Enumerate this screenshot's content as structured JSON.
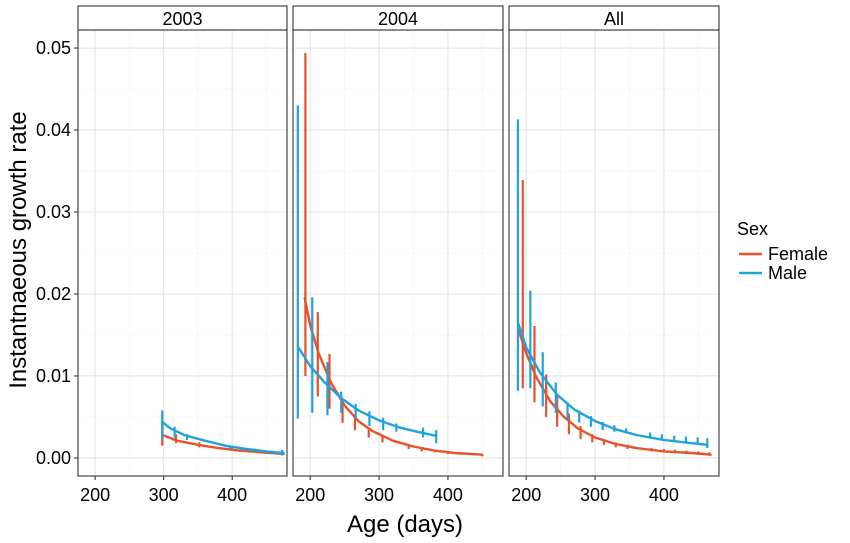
{
  "chart_data": {
    "type": "line",
    "facets": [
      "2003",
      "2004",
      "All"
    ],
    "xlabel": "Age (days)",
    "ylabel": "Instantnaeous growth rate",
    "x_ticks": [
      200,
      300,
      400
    ],
    "y_ticks": [
      "0.00",
      "0.01",
      "0.02",
      "0.03",
      "0.04",
      "0.05"
    ],
    "xlim": [
      175,
      480
    ],
    "ylim": [
      -0.0022,
      0.0522
    ],
    "grid": true,
    "legend": {
      "title": "Sex",
      "position": "right"
    },
    "series": [
      {
        "name": "Female",
        "color": "#E8512A",
        "panels": {
          "2003": {
            "curve": [
              [
                298,
                0.0028
              ],
              [
                320,
                0.0021
              ],
              [
                350,
                0.0016
              ],
              [
                380,
                0.0012
              ],
              [
                410,
                0.0009
              ],
              [
                440,
                0.0007
              ],
              [
                475,
                0.0005
              ]
            ],
            "errorbars": [
              [
                298,
                0.0015,
                0.0045
              ],
              [
                318,
                0.0018,
                0.0029
              ],
              [
                352,
                0.0013,
                0.0019
              ],
              [
                400,
                0.0009,
                0.0012
              ],
              [
                425,
                0.0007,
                0.001
              ],
              [
                450,
                0.0006,
                0.0009
              ],
              [
                472,
                0.0004,
                0.0008
              ]
            ]
          },
          "2004": {
            "curve": [
              [
                192,
                0.0195
              ],
              [
                200,
                0.0162
              ],
              [
                212,
                0.0128
              ],
              [
                230,
                0.0092
              ],
              [
                250,
                0.0064
              ],
              [
                270,
                0.0045
              ],
              [
                290,
                0.0033
              ],
              [
                320,
                0.0021
              ],
              [
                350,
                0.0014
              ],
              [
                380,
                0.0009
              ],
              [
                410,
                0.0006
              ],
              [
                450,
                0.0004
              ]
            ],
            "errorbars": [
              [
                193,
                0.01,
                0.0494
              ],
              [
                211,
                0.0075,
                0.0178
              ],
              [
                228,
                0.006,
                0.0127
              ],
              [
                247,
                0.0043,
                0.0073
              ],
              [
                265,
                0.0034,
                0.0053
              ],
              [
                285,
                0.0025,
                0.0036
              ],
              [
                305,
                0.0019,
                0.0027
              ],
              [
                343,
                0.0011,
                0.0017
              ],
              [
                362,
                0.0008,
                0.0013
              ],
              [
                381,
                0.0007,
                0.001
              ],
              [
                400,
                0.0005,
                0.0008
              ],
              [
                418,
                0.0004,
                0.0007
              ],
              [
                436,
                0.0003,
                0.0006
              ],
              [
                450,
                0.0002,
                0.0005
              ]
            ]
          },
          "All": {
            "curve": [
              [
                188,
                0.0158
              ],
              [
                200,
                0.0128
              ],
              [
                215,
                0.0098
              ],
              [
                235,
                0.0069
              ],
              [
                255,
                0.005
              ],
              [
                275,
                0.0036
              ],
              [
                300,
                0.0025
              ],
              [
                330,
                0.0017
              ],
              [
                360,
                0.0012
              ],
              [
                400,
                0.0008
              ],
              [
                440,
                0.0006
              ],
              [
                468,
                0.0004
              ]
            ],
            "errorbars": [
              [
                195,
                0.0085,
                0.0339
              ],
              [
                212,
                0.0068,
                0.0161
              ],
              [
                229,
                0.005,
                0.0102
              ],
              [
                245,
                0.0038,
                0.0076
              ],
              [
                262,
                0.0029,
                0.0054
              ],
              [
                279,
                0.0023,
                0.0039
              ],
              [
                296,
                0.0019,
                0.0029
              ],
              [
                313,
                0.0016,
                0.0023
              ],
              [
                330,
                0.0013,
                0.0019
              ],
              [
                347,
                0.0011,
                0.0016
              ],
              [
                382,
                0.0008,
                0.0012
              ],
              [
                400,
                0.0007,
                0.0011
              ],
              [
                416,
                0.0006,
                0.001
              ],
              [
                433,
                0.0005,
                0.0009
              ],
              [
                450,
                0.0004,
                0.0008
              ],
              [
                466,
                0.0003,
                0.0007
              ]
            ]
          }
        }
      },
      {
        "name": "Male",
        "color": "#1FA3DD",
        "panels": {
          "2003": {
            "curve": [
              [
                298,
                0.0044
              ],
              [
                310,
                0.0036
              ],
              [
                330,
                0.0028
              ],
              [
                360,
                0.0021
              ],
              [
                390,
                0.0015
              ],
              [
                420,
                0.0011
              ],
              [
                450,
                0.0008
              ],
              [
                475,
                0.0006
              ]
            ],
            "errorbars": [
              [
                298,
                0.0023,
                0.0058
              ],
              [
                316,
                0.0025,
                0.0038
              ],
              [
                334,
                0.0022,
                0.0029
              ],
              [
                397,
                0.0011,
                0.0015
              ],
              [
                415,
                0.0009,
                0.0013
              ],
              [
                432,
                0.0007,
                0.0011
              ],
              [
                452,
                0.0006,
                0.0009
              ],
              [
                473,
                0.0003,
                0.001
              ]
            ]
          },
          "2004": {
            "curve": [
              [
                182,
                0.0136
              ],
              [
                200,
                0.0112
              ],
              [
                220,
                0.0093
              ],
              [
                245,
                0.0073
              ],
              [
                270,
                0.0058
              ],
              [
                300,
                0.0046
              ],
              [
                330,
                0.0037
              ],
              [
                355,
                0.0032
              ],
              [
                383,
                0.0027
              ]
            ],
            "errorbars": [
              [
                182,
                0.0048,
                0.043
              ],
              [
                203,
                0.0055,
                0.0196
              ],
              [
                225,
                0.0052,
                0.0117
              ],
              [
                245,
                0.0055,
                0.0081
              ],
              [
                266,
                0.0048,
                0.0066
              ],
              [
                286,
                0.0039,
                0.0057
              ],
              [
                306,
                0.0034,
                0.0049
              ],
              [
                325,
                0.0032,
                0.0042
              ],
              [
                364,
                0.0025,
                0.0037
              ],
              [
                383,
                0.0018,
                0.0034
              ]
            ]
          },
          "All": {
            "curve": [
              [
                188,
                0.0165
              ],
              [
                200,
                0.0135
              ],
              [
                220,
                0.0104
              ],
              [
                245,
                0.0077
              ],
              [
                270,
                0.0059
              ],
              [
                300,
                0.0045
              ],
              [
                330,
                0.0035
              ],
              [
                360,
                0.0028
              ],
              [
                400,
                0.0022
              ],
              [
                440,
                0.0018
              ],
              [
                463,
                0.0016
              ]
            ],
            "errorbars": [
              [
                188,
                0.0082,
                0.0413
              ],
              [
                206,
                0.0085,
                0.0204
              ],
              [
                224,
                0.0063,
                0.0129
              ],
              [
                243,
                0.0055,
                0.0092
              ],
              [
                260,
                0.0046,
                0.0068
              ],
              [
                277,
                0.0043,
                0.0058
              ],
              [
                294,
                0.0038,
                0.0051
              ],
              [
                311,
                0.0034,
                0.0044
              ],
              [
                328,
                0.0032,
                0.004
              ],
              [
                345,
                0.003,
                0.0036
              ],
              [
                380,
                0.0025,
                0.0031
              ],
              [
                397,
                0.0022,
                0.0029
              ],
              [
                415,
                0.002,
                0.0027
              ],
              [
                432,
                0.0019,
                0.0026
              ],
              [
                449,
                0.0016,
                0.0025
              ],
              [
                463,
                0.0012,
                0.0024
              ]
            ]
          }
        }
      }
    ]
  }
}
